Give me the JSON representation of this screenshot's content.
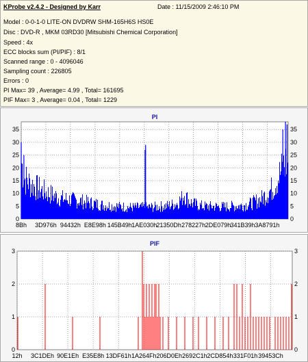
{
  "header": {
    "title": "KProbe v2.4.2 - Designed by Karr",
    "date": "Date : 11/15/2009 2:46:10 PM",
    "model": "Model : 0-0-1-0 LITE-ON DVDRW SHM-165H6S HS0E",
    "disc": "Disc : DVD-R , MKM 03RD30  [Mitsubishi Chemical Corporation]",
    "speed": "Speed : 4x",
    "ecc": "ECC blocks sum (PI/PIF) : 8/1",
    "range": "Scanned range : 0 - 4096046",
    "sampling": "Sampling count : 226805",
    "errors": "Errors : 0",
    "pi_summary": "PI Max= 39 , Average= 4.99 , Total= 161695",
    "pif_summary": "PIF Max= 3 , Average= 0.04 , Total= 1229"
  },
  "colors": {
    "pi": "#0000ff",
    "pif": "#ff0000",
    "panel_bg": "#f5f5f5",
    "info_bg": "#fbf8e6"
  },
  "chart_data": [
    {
      "type": "bar",
      "title": "PI",
      "ylim": [
        0,
        38
      ],
      "yticks": [
        "0",
        "5",
        "10",
        "15",
        "20",
        "25",
        "30",
        "35"
      ],
      "xticks": [
        "8Bh",
        "3D976h",
        "94432h",
        "E8E98h",
        "145B49h",
        "1AE030h",
        "21350Dh",
        "278227h",
        "2DE079h",
        "341B39h",
        "3A8791h"
      ],
      "grid": true,
      "profile": [
        [
          0,
          22
        ],
        [
          1,
          16
        ],
        [
          3,
          14
        ],
        [
          6,
          12
        ],
        [
          10,
          10
        ],
        [
          15,
          8
        ],
        [
          22,
          7
        ],
        [
          30,
          5.5
        ],
        [
          40,
          4.6
        ],
        [
          48,
          4.6
        ],
        [
          54,
          5
        ],
        [
          58,
          6
        ],
        [
          60,
          8
        ],
        [
          61,
          10
        ],
        [
          62,
          8
        ],
        [
          64,
          6
        ],
        [
          68,
          5
        ],
        [
          76,
          4.8
        ],
        [
          82,
          5.2
        ],
        [
          86,
          6
        ],
        [
          90,
          8
        ],
        [
          94,
          12
        ],
        [
          97,
          18
        ],
        [
          100,
          24
        ]
      ],
      "spikes": [
        {
          "x": 0,
          "value": 30
        },
        {
          "x": 1,
          "value": 25
        },
        {
          "x": 46.4,
          "value": 27
        },
        {
          "x": 46.6,
          "value": 29
        },
        {
          "x": 98,
          "value": 35
        },
        {
          "x": 99,
          "value": 38
        },
        {
          "x": 99.6,
          "value": 37
        }
      ]
    },
    {
      "type": "bar",
      "title": "PIF",
      "ylim": [
        0,
        3
      ],
      "yticks": [
        "0",
        "1",
        "2",
        "3"
      ],
      "xticks": [
        "12h",
        "3C1DEh",
        "90E1Eh",
        "E35E8h",
        "13DF61h",
        "1A264Fh",
        "206D0Eh",
        "2692C1h",
        "2CD854h",
        "331F01h",
        "39453Ch"
      ],
      "grid": true,
      "bars": [
        {
          "x": 0,
          "value": 1
        },
        {
          "x": 10,
          "value": 2
        },
        {
          "x": 20,
          "value": 1
        },
        {
          "x": 30,
          "value": 1
        },
        {
          "x": 44,
          "value": 1
        },
        {
          "x": 45.5,
          "value": 3
        },
        {
          "x": 46,
          "value": 2
        },
        {
          "x": 46.5,
          "value": 1
        },
        {
          "x": 47,
          "value": 2
        },
        {
          "x": 47.5,
          "value": 1
        },
        {
          "x": 48,
          "value": 2
        },
        {
          "x": 48.5,
          "value": 1
        },
        {
          "x": 49,
          "value": 2
        },
        {
          "x": 49.5,
          "value": 1
        },
        {
          "x": 50,
          "value": 2
        },
        {
          "x": 50.5,
          "value": 2
        },
        {
          "x": 51,
          "value": 1
        },
        {
          "x": 51.5,
          "value": 2
        },
        {
          "x": 52,
          "value": 1
        },
        {
          "x": 53,
          "value": 1
        },
        {
          "x": 55,
          "value": 1
        },
        {
          "x": 58,
          "value": 1
        },
        {
          "x": 61,
          "value": 1
        },
        {
          "x": 64,
          "value": 1
        },
        {
          "x": 66,
          "value": 1
        },
        {
          "x": 69,
          "value": 1
        },
        {
          "x": 72,
          "value": 1
        },
        {
          "x": 75,
          "value": 1
        },
        {
          "x": 77,
          "value": 1
        },
        {
          "x": 79,
          "value": 2
        },
        {
          "x": 80,
          "value": 2
        },
        {
          "x": 81,
          "value": 1
        },
        {
          "x": 82,
          "value": 2
        },
        {
          "x": 83,
          "value": 1
        },
        {
          "x": 84,
          "value": 1
        },
        {
          "x": 85,
          "value": 2
        },
        {
          "x": 86,
          "value": 1
        },
        {
          "x": 87,
          "value": 1
        },
        {
          "x": 88,
          "value": 1
        },
        {
          "x": 89,
          "value": 1
        },
        {
          "x": 90,
          "value": 1
        },
        {
          "x": 91,
          "value": 1
        },
        {
          "x": 92,
          "value": 1
        },
        {
          "x": 94,
          "value": 1
        },
        {
          "x": 95,
          "value": 1
        },
        {
          "x": 96,
          "value": 1
        },
        {
          "x": 97,
          "value": 1
        },
        {
          "x": 98,
          "value": 1
        },
        {
          "x": 99,
          "value": 1
        },
        {
          "x": 100,
          "value": 2
        }
      ]
    }
  ]
}
